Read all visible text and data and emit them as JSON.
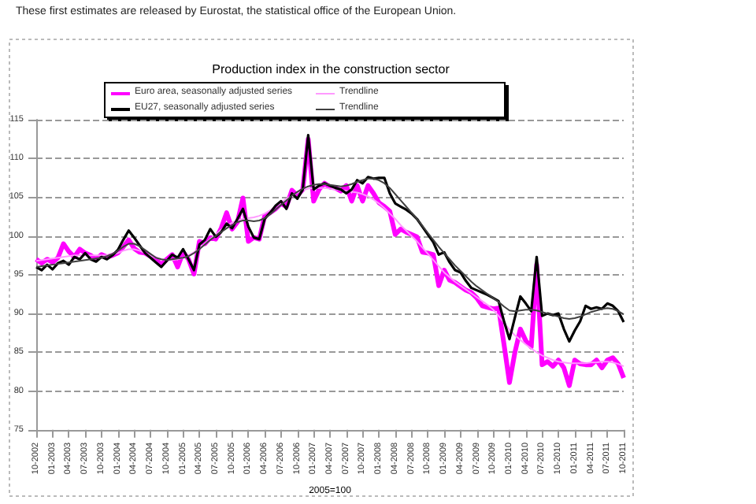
{
  "chart_data": {
    "type": "line",
    "title": "Production index in the construction sector",
    "xlabel": "2005=100",
    "annotations": [
      "These first estimates are released by Eurostat, the statistical office of the European Union."
    ],
    "categories": [
      "10-2002",
      null,
      null,
      "01-2003",
      null,
      null,
      "04-2003",
      null,
      null,
      "07-2003",
      null,
      null,
      "10-2003",
      null,
      null,
      "01-2004",
      null,
      null,
      "04-2004",
      null,
      null,
      "07-2004",
      null,
      null,
      "10-2004",
      null,
      null,
      "01-2005",
      null,
      null,
      "04-2005",
      null,
      null,
      "07-2005",
      null,
      null,
      "10-2005",
      null,
      null,
      "01-2006",
      null,
      null,
      "04-2006",
      null,
      null,
      "07-2006",
      null,
      null,
      "10-2006",
      null,
      null,
      "01-2007",
      null,
      null,
      "04-2007",
      null,
      null,
      "07-2007",
      null,
      null,
      "10-2007",
      null,
      null,
      "01-2008",
      null,
      null,
      "04-2008",
      null,
      null,
      "07-2008",
      null,
      null,
      "10-2008",
      null,
      null,
      "01-2009",
      null,
      null,
      "04-2009",
      null,
      null,
      "07-2009",
      null,
      null,
      "10-2009",
      null,
      null,
      "01-2010",
      null,
      null,
      "04-2010",
      null,
      null,
      "07-2010",
      null,
      null,
      "10-2010",
      null,
      null,
      "01-2011",
      null,
      null,
      "04-2011",
      null,
      null,
      "07-2011",
      null,
      null,
      "10-2011"
    ],
    "series": [
      {
        "name": "Euro area, seasonally adjusted series",
        "color": "#ff00ff",
        "values": [
          97,
          96.5,
          97,
          96.6,
          97.2,
          99,
          98,
          97.3,
          98.3,
          97.8,
          97.5,
          97,
          97.6,
          97.3,
          97.5,
          97.8,
          98.6,
          99.5,
          98.4,
          97.9,
          97.8,
          97.4,
          97,
          96.3,
          97,
          97.6,
          96,
          97.9,
          97,
          95.1,
          99.3,
          99,
          99.8,
          99.6,
          101,
          103,
          100.9,
          101.8,
          104.9,
          99.3,
          99.8,
          99.6,
          102.6,
          103,
          103.5,
          104.2,
          103.8,
          105.9,
          105.2,
          106,
          112.5,
          104.5,
          106,
          106.8,
          106.3,
          106.2,
          105.8,
          106.5,
          104.5,
          106.5,
          104.5,
          106.5,
          105.5,
          104.3,
          103.8,
          103.2,
          100.2,
          100.9,
          100.5,
          100.2,
          99.9,
          97.9,
          97.8,
          97.6,
          93.6,
          95.6,
          94.3,
          94,
          93.5,
          93,
          92.7,
          92,
          91,
          90.8,
          90.6,
          90.7,
          86,
          81.1,
          85,
          88,
          86.5,
          85.7,
          96.3,
          83.4,
          83.8,
          83.2,
          84,
          83,
          80.7,
          84,
          83.5,
          83.4,
          83.4,
          84,
          83,
          84,
          84.3,
          83.5,
          81.7
        ]
      },
      {
        "name": "Trendline",
        "color": "#ff99ff",
        "values": [
          96.8,
          96.9,
          97,
          97.1,
          97.2,
          97.3,
          97.4,
          97.5,
          97.5,
          97.5,
          97.5,
          97.5,
          97.5,
          97.5,
          97.6,
          97.8,
          98.1,
          98.3,
          98.3,
          98.1,
          97.8,
          97.5,
          97.2,
          97,
          96.9,
          96.9,
          97,
          97.2,
          97.5,
          97.9,
          98.4,
          99,
          99.6,
          100.2,
          100.8,
          101.3,
          101.7,
          102,
          102.2,
          102.3,
          102.4,
          102.6,
          102.9,
          103.3,
          103.8,
          104.3,
          104.8,
          105.2,
          105.6,
          105.9,
          106.1,
          106.2,
          106.2,
          106.2,
          106.1,
          106,
          105.9,
          105.8,
          105.7,
          105.6,
          105.4,
          105.1,
          104.7,
          104.2,
          103.6,
          102.9,
          102.2,
          101.4,
          100.7,
          100,
          99.3,
          98.5,
          97.7,
          96.9,
          96.1,
          95.3,
          94.7,
          94.1,
          93.6,
          93.1,
          92.6,
          92.1,
          91.6,
          91.1,
          90.5,
          89.7,
          88.8,
          87.9,
          87.2,
          86.6,
          86,
          85.5,
          85,
          84.6,
          84.3,
          84,
          83.8,
          83.7,
          83.6,
          83.6,
          83.6,
          83.6,
          83.7,
          83.7,
          83.8,
          83.8,
          83.7,
          83.5,
          83.2
        ]
      },
      {
        "name": "EU27, seasonally adjusted series",
        "color": "#000000",
        "values": [
          96,
          95.6,
          96.3,
          95.7,
          96.5,
          96.8,
          96.3,
          97.3,
          97,
          97.8,
          97,
          96.7,
          97.3,
          97,
          97.5,
          98.2,
          99.5,
          100.7,
          99.8,
          98.8,
          97.8,
          97.2,
          96.6,
          96,
          96.8,
          97.6,
          97.2,
          98.3,
          97,
          95.6,
          98.9,
          99.5,
          100.9,
          99.9,
          100.5,
          101.6,
          101,
          102.2,
          103.5,
          101.2,
          99.8,
          99.6,
          102.2,
          103,
          103.9,
          104.5,
          103.5,
          105.5,
          104.8,
          106,
          113,
          106,
          106.5,
          106.8,
          106.5,
          106.2,
          106,
          105.5,
          106,
          107.2,
          106.8,
          107.6,
          107.4,
          107.5,
          107.5,
          105.5,
          104.2,
          103.8,
          103.4,
          102.9,
          102.2,
          101.2,
          100.2,
          99.2,
          97.6,
          97.9,
          96.6,
          95.6,
          95.3,
          94.2,
          93.3,
          93,
          92.7,
          92.4,
          92,
          91.6,
          89,
          86.7,
          89.5,
          92.2,
          91.3,
          90.3,
          97.3,
          89.7,
          90,
          89.8,
          90,
          88,
          86.4,
          87.8,
          89,
          91,
          90.6,
          90.8,
          90.6,
          91.3,
          91,
          90.3,
          88.9
        ]
      },
      {
        "name": "Trendline",
        "color": "#404040",
        "values": [
          96,
          96.1,
          96.2,
          96.3,
          96.4,
          96.5,
          96.6,
          96.7,
          96.8,
          96.9,
          97,
          97.1,
          97.2,
          97.4,
          97.7,
          98.1,
          98.6,
          99,
          99,
          98.7,
          98.2,
          97.7,
          97.2,
          97,
          96.9,
          97,
          97.1,
          97.2,
          97.4,
          97.8,
          98.3,
          98.9,
          99.5,
          100,
          100.5,
          101,
          101.4,
          101.8,
          102,
          102,
          101.9,
          102,
          102.3,
          102.8,
          103.4,
          104,
          104.6,
          105.2,
          105.7,
          106.1,
          106.4,
          106.6,
          106.7,
          106.7,
          106.6,
          106.5,
          106.4,
          106.5,
          106.7,
          107,
          107.2,
          107.4,
          107.4,
          107.2,
          106.8,
          106.2,
          105.4,
          104.6,
          103.8,
          103,
          102.2,
          101.3,
          100.4,
          99.5,
          98.6,
          97.8,
          97,
          96.2,
          95.5,
          94.8,
          94.1,
          93.5,
          93,
          92.5,
          92,
          91.5,
          90.9,
          90.4,
          90.3,
          90.4,
          90.5,
          90.5,
          90.4,
          90.2,
          90,
          89.8,
          89.6,
          89.4,
          89.3,
          89.4,
          89.6,
          89.9,
          90.2,
          90.4,
          90.6,
          90.7,
          90.6,
          90.3,
          89.9
        ]
      }
    ],
    "ylim": [
      75,
      115
    ],
    "yticks": [
      75,
      80,
      85,
      90,
      95,
      100,
      105,
      110,
      115
    ],
    "grid": "y",
    "legend": "top",
    "marker": "none"
  }
}
